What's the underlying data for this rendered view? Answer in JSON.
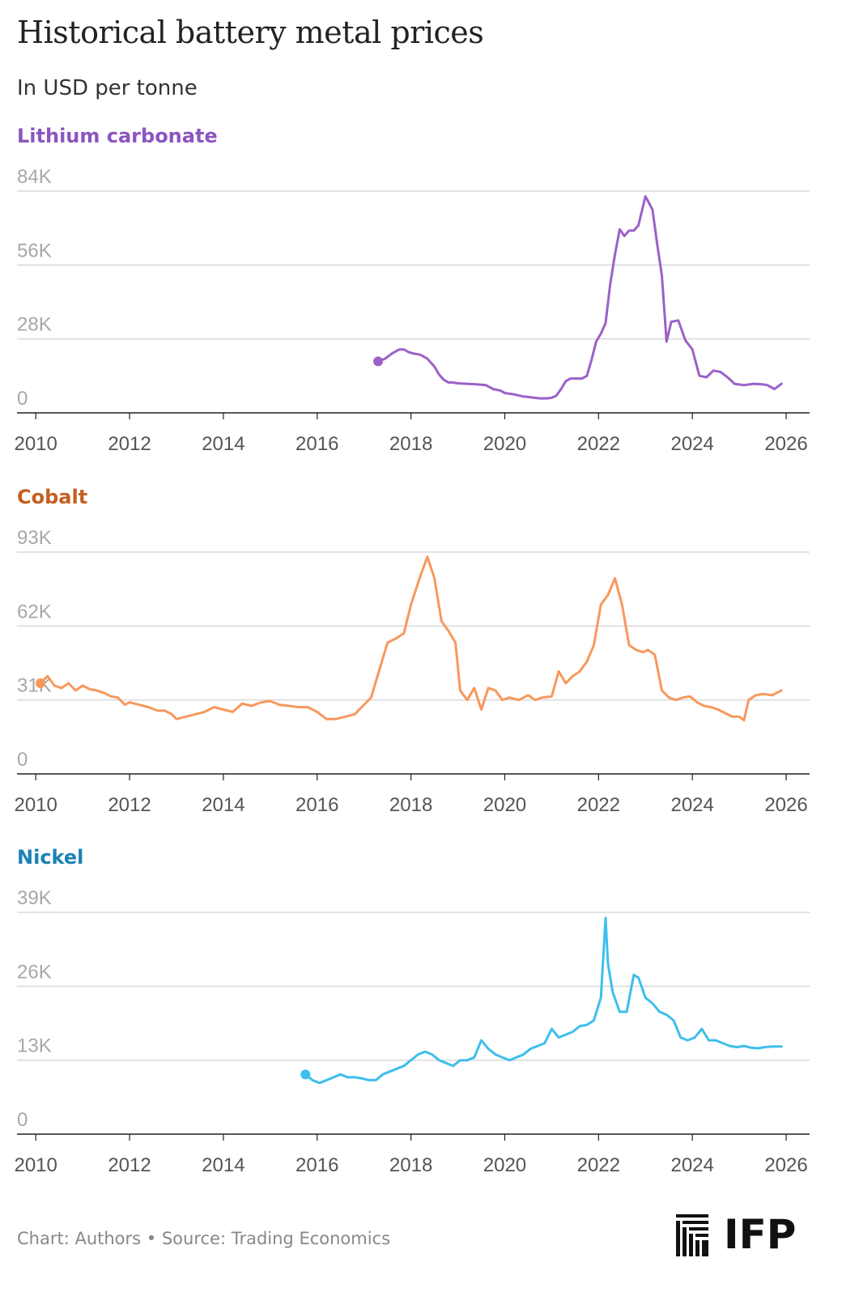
{
  "title": "Historical battery metal prices",
  "subtitle": "In USD per tonne",
  "footer": "Chart: Authors • Source: Trading Economics",
  "logo_text": "IFP",
  "chart_data": [
    {
      "type": "line",
      "title": "Lithium carbonate",
      "color": "#9b61c8",
      "title_color": "#8c55bf",
      "ylim": [
        0,
        84000
      ],
      "yticks": [
        0,
        28000,
        56000,
        84000
      ],
      "ytick_labels": [
        "0",
        "28K",
        "56K",
        "84K"
      ],
      "xlim": [
        2009.6,
        2026.5
      ],
      "xticks": [
        2010,
        2012,
        2014,
        2016,
        2018,
        2020,
        2022,
        2024,
        2026
      ],
      "xtick_labels": [
        "2010",
        "2012",
        "2014",
        "2016",
        "2018",
        "2020",
        "2022",
        "2024",
        "2026"
      ],
      "grid": true,
      "x": [
        2017.3,
        2017.45,
        2017.6,
        2017.75,
        2017.85,
        2017.95,
        2018.05,
        2018.2,
        2018.35,
        2018.5,
        2018.6,
        2018.7,
        2018.8,
        2018.9,
        2019.0,
        2019.2,
        2019.4,
        2019.6,
        2019.75,
        2019.9,
        2020.0,
        2020.2,
        2020.4,
        2020.6,
        2020.75,
        2020.9,
        2021.0,
        2021.1,
        2021.2,
        2021.3,
        2021.4,
        2021.55,
        2021.65,
        2021.75,
        2021.85,
        2021.95,
        2022.05,
        2022.15,
        2022.25,
        2022.35,
        2022.45,
        2022.55,
        2022.65,
        2022.75,
        2022.85,
        2023.0,
        2023.15,
        2023.25,
        2023.35,
        2023.45,
        2023.55,
        2023.7,
        2023.85,
        2024.0,
        2024.15,
        2024.3,
        2024.45,
        2024.6,
        2024.75,
        2024.9,
        2025.1,
        2025.3,
        2025.5,
        2025.6,
        2025.75,
        2025.9
      ],
      "y": [
        19500,
        20500,
        22500,
        24000,
        24000,
        23000,
        22500,
        22000,
        20500,
        17500,
        14500,
        12500,
        11500,
        11500,
        11200,
        11000,
        10800,
        10500,
        9000,
        8500,
        7500,
        7000,
        6200,
        5800,
        5500,
        5500,
        5700,
        6500,
        9000,
        12000,
        13000,
        13000,
        13000,
        14000,
        20000,
        27000,
        30000,
        34000,
        49000,
        60000,
        69500,
        67000,
        69000,
        69000,
        71000,
        82000,
        77000,
        64000,
        52000,
        27000,
        34500,
        35000,
        27500,
        24000,
        14000,
        13500,
        16000,
        15500,
        13500,
        11000,
        10500,
        11000,
        10800,
        10500,
        9000,
        11000
      ]
    },
    {
      "type": "line",
      "title": "Cobalt",
      "color": "#f7985d",
      "title_color": "#c55e20",
      "ylim": [
        0,
        93000
      ],
      "yticks": [
        0,
        31000,
        62000,
        93000
      ],
      "ytick_labels": [
        "0",
        "31K",
        "62K",
        "93K"
      ],
      "xlim": [
        2009.6,
        2026.5
      ],
      "xticks": [
        2010,
        2012,
        2014,
        2016,
        2018,
        2020,
        2022,
        2024,
        2026
      ],
      "xtick_labels": [
        "2010",
        "2012",
        "2014",
        "2016",
        "2018",
        "2020",
        "2022",
        "2024",
        "2026"
      ],
      "grid": true,
      "x": [
        2010.1,
        2010.25,
        2010.4,
        2010.55,
        2010.7,
        2010.85,
        2011.0,
        2011.15,
        2011.3,
        2011.45,
        2011.6,
        2011.75,
        2011.9,
        2012.0,
        2012.2,
        2012.4,
        2012.6,
        2012.75,
        2012.9,
        2013.0,
        2013.2,
        2013.4,
        2013.6,
        2013.8,
        2014.0,
        2014.2,
        2014.4,
        2014.6,
        2014.8,
        2015.0,
        2015.2,
        2015.4,
        2015.6,
        2015.8,
        2016.0,
        2016.2,
        2016.4,
        2016.6,
        2016.8,
        2017.0,
        2017.15,
        2017.3,
        2017.5,
        2017.7,
        2017.85,
        2018.0,
        2018.2,
        2018.35,
        2018.5,
        2018.65,
        2018.8,
        2018.95,
        2019.05,
        2019.2,
        2019.35,
        2019.5,
        2019.65,
        2019.8,
        2019.95,
        2020.1,
        2020.3,
        2020.5,
        2020.65,
        2020.8,
        2021.0,
        2021.15,
        2021.3,
        2021.45,
        2021.6,
        2021.75,
        2021.9,
        2022.05,
        2022.2,
        2022.35,
        2022.5,
        2022.65,
        2022.8,
        2022.95,
        2023.05,
        2023.2,
        2023.35,
        2023.5,
        2023.65,
        2023.8,
        2023.95,
        2024.1,
        2024.25,
        2024.4,
        2024.55,
        2024.7,
        2024.85,
        2025.0,
        2025.1,
        2025.2,
        2025.35,
        2025.5,
        2025.7,
        2025.9
      ],
      "y": [
        38000,
        41000,
        37000,
        36000,
        38000,
        35000,
        37000,
        35500,
        35000,
        34000,
        32500,
        32000,
        29000,
        30000,
        29000,
        28000,
        26500,
        26500,
        25000,
        23000,
        24000,
        25000,
        26000,
        28000,
        27000,
        26000,
        29500,
        28500,
        30000,
        30500,
        29000,
        28500,
        28000,
        28000,
        26000,
        23000,
        23000,
        24000,
        25000,
        29000,
        32000,
        42000,
        55000,
        57000,
        59000,
        71000,
        83000,
        91000,
        82000,
        64000,
        60000,
        55000,
        35000,
        31000,
        36000,
        27000,
        36000,
        35000,
        31000,
        32000,
        31000,
        33000,
        31000,
        32000,
        32500,
        43000,
        38000,
        41000,
        43000,
        47000,
        54000,
        71000,
        75000,
        82000,
        71000,
        54000,
        52000,
        51000,
        52000,
        50000,
        35000,
        32000,
        31000,
        32000,
        32500,
        30000,
        28500,
        28000,
        27000,
        25500,
        24000,
        24000,
        22500,
        31000,
        33000,
        33500,
        33000,
        35000
      ]
    },
    {
      "type": "line",
      "title": "Nickel",
      "color": "#3dbfec",
      "title_color": "#1b82b3",
      "ylim": [
        0,
        39000
      ],
      "yticks": [
        0,
        13000,
        26000,
        39000
      ],
      "ytick_labels": [
        "0",
        "13K",
        "26K",
        "39K"
      ],
      "xlim": [
        2009.6,
        2026.5
      ],
      "xticks": [
        2010,
        2012,
        2014,
        2016,
        2018,
        2020,
        2022,
        2024,
        2026
      ],
      "xtick_labels": [
        "2010",
        "2012",
        "2014",
        "2016",
        "2018",
        "2020",
        "2022",
        "2024",
        "2026"
      ],
      "grid": true,
      "x": [
        2015.75,
        2015.9,
        2016.05,
        2016.2,
        2016.35,
        2016.5,
        2016.65,
        2016.8,
        2016.95,
        2017.1,
        2017.25,
        2017.4,
        2017.55,
        2017.7,
        2017.85,
        2018.0,
        2018.15,
        2018.3,
        2018.45,
        2018.6,
        2018.75,
        2018.9,
        2019.05,
        2019.2,
        2019.35,
        2019.5,
        2019.65,
        2019.8,
        2019.95,
        2020.1,
        2020.25,
        2020.4,
        2020.55,
        2020.7,
        2020.85,
        2021.0,
        2021.15,
        2021.3,
        2021.45,
        2021.6,
        2021.75,
        2021.9,
        2022.05,
        2022.15,
        2022.2,
        2022.3,
        2022.45,
        2022.6,
        2022.75,
        2022.85,
        2023.0,
        2023.15,
        2023.3,
        2023.45,
        2023.6,
        2023.75,
        2023.9,
        2024.05,
        2024.2,
        2024.35,
        2024.5,
        2024.65,
        2024.8,
        2024.95,
        2025.1,
        2025.25,
        2025.4,
        2025.55,
        2025.7,
        2025.9
      ],
      "y": [
        10500,
        9500,
        9000,
        9500,
        10000,
        10500,
        10000,
        10000,
        9800,
        9500,
        9500,
        10500,
        11000,
        11500,
        12000,
        13000,
        14000,
        14500,
        14000,
        13000,
        12500,
        12000,
        13000,
        13000,
        13500,
        16500,
        15000,
        14000,
        13500,
        13000,
        13500,
        14000,
        15000,
        15500,
        16000,
        18500,
        17000,
        17500,
        18000,
        19000,
        19200,
        20000,
        24000,
        38000,
        30000,
        25000,
        21500,
        21500,
        28000,
        27500,
        24000,
        23000,
        21500,
        21000,
        20000,
        17000,
        16500,
        17000,
        18500,
        16500,
        16500,
        16000,
        15500,
        15300,
        15500,
        15200,
        15100,
        15300,
        15400,
        15400
      ]
    }
  ]
}
